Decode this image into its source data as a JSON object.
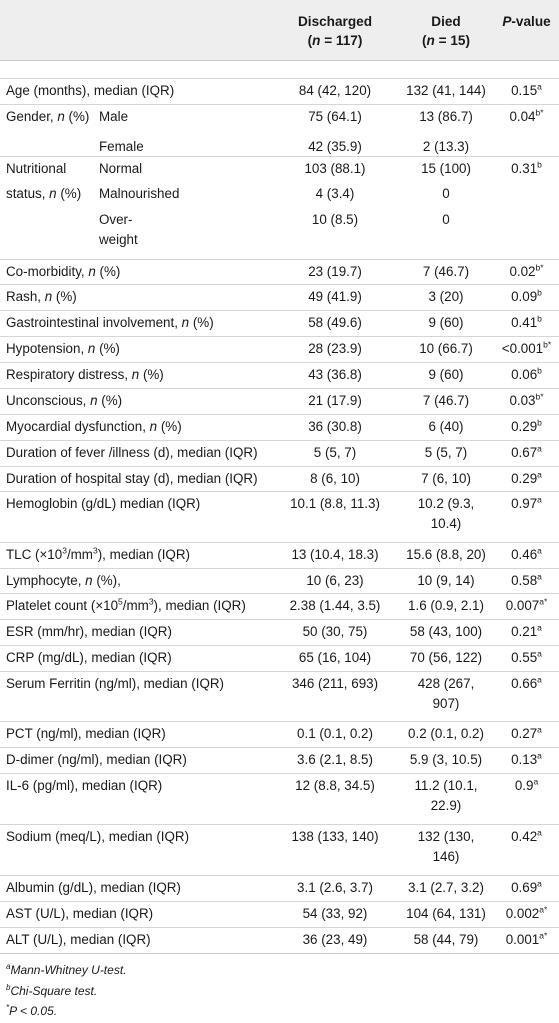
{
  "header": {
    "col_discharged": "Discharged",
    "col_discharged_n": "(n = 117)",
    "col_died": "Died",
    "col_died_n": "(n = 15)",
    "col_pvalue": "P-value"
  },
  "rows": [
    {
      "label": "Age (months), median (IQR)",
      "d": "84 (42, 120)",
      "x": "132 (41, 144)",
      "p": "0.15",
      "sup": "a"
    },
    {
      "label": "Gender, n (%)",
      "sub": "Male",
      "d": "75 (64.1)",
      "x": "13 (86.7)",
      "p": "0.04",
      "sup": "b*"
    },
    {
      "label": "",
      "sub": "Female",
      "d": "42 (35.9)",
      "x": "2 (13.3)",
      "p": "",
      "sup": ""
    },
    {
      "label": "Nutritional",
      "sub": "Normal",
      "d": "103 (88.1)",
      "x": "15 (100)",
      "p": "0.31",
      "sup": "b"
    },
    {
      "label": "status, n (%)",
      "sub": "Malnourished",
      "d": "4 (3.4)",
      "x": "0",
      "p": "",
      "sup": ""
    },
    {
      "label": "",
      "sub": "Over-\nweight",
      "d": "10 (8.5)",
      "x": "0",
      "p": "",
      "sup": ""
    },
    {
      "label": "Co-morbidity, n (%)",
      "d": "23 (19.7)",
      "x": "7 (46.7)",
      "p": "0.02",
      "sup": "b*"
    },
    {
      "label": "Rash, n (%)",
      "d": "49 (41.9)",
      "x": "3 (20)",
      "p": "0.09",
      "sup": "b"
    },
    {
      "label": "Gastrointestinal involvement, n (%)",
      "d": "58 (49.6)",
      "x": "9 (60)",
      "p": "0.41",
      "sup": "b"
    },
    {
      "label": "Hypotension, n (%)",
      "d": "28 (23.9)",
      "x": "10 (66.7)",
      "p": "<0.001",
      "sup": "b*"
    },
    {
      "label": "Respiratory distress, n (%)",
      "d": "43 (36.8)",
      "x": "9 (60)",
      "p": "0.06",
      "sup": "b"
    },
    {
      "label": "Unconscious, n (%)",
      "d": "21 (17.9)",
      "x": "7 (46.7)",
      "p": "0.03",
      "sup": "b*"
    },
    {
      "label": "Myocardial dysfunction, n (%)",
      "d": "36 (30.8)",
      "x": "6 (40)",
      "p": "0.29",
      "sup": "b"
    },
    {
      "label": "Duration of fever /illness (d), median (IQR)",
      "d": "5 (5, 7)",
      "x": "5 (5, 7)",
      "p": "0.67",
      "sup": "a"
    },
    {
      "label": "Duration of hospital stay (d), median (IQR)",
      "d": "8 (6, 10)",
      "x": "7 (6, 10)",
      "p": "0.29",
      "sup": "a"
    },
    {
      "label": "Hemoglobin (g/dL) median (IQR)",
      "d": "10.1 (8.8, 11.3)",
      "x": "10.2 (9.3,\n10.4)",
      "p": "0.97",
      "sup": "a"
    },
    {
      "label": "TLC (×10³/mm³), median (IQR)",
      "d": "13 (10.4, 18.3)",
      "x": "15.6 (8.8, 20)",
      "p": "0.46",
      "sup": "a"
    },
    {
      "label": "Lymphocyte, n (%),",
      "d": "10 (6, 23)",
      "x": "10 (9, 14)",
      "p": "0.58",
      "sup": "a"
    },
    {
      "label": "Platelet count (×10⁵/mm³), median (IQR)",
      "d": "2.38 (1.44, 3.5)",
      "x": "1.6 (0.9, 2.1)",
      "p": "0.007",
      "sup": "a*"
    },
    {
      "label": "ESR (mm/hr), median (IQR)",
      "d": "50 (30, 75)",
      "x": "58 (43, 100)",
      "p": "0.21",
      "sup": "a"
    },
    {
      "label": "CRP (mg/dL), median (IQR)",
      "d": "65 (16, 104)",
      "x": "70 (56, 122)",
      "p": "0.55",
      "sup": "a"
    },
    {
      "label": "Serum Ferritin (ng/ml), median (IQR)",
      "d": "346 (211, 693)",
      "x": "428 (267,\n907)",
      "p": "0.66",
      "sup": "a"
    },
    {
      "label": "PCT (ng/ml), median (IQR)",
      "d": "0.1 (0.1, 0.2)",
      "x": "0.2 (0.1, 0.2)",
      "p": "0.27",
      "sup": "a"
    },
    {
      "label": "D-dimer (ng/ml), median (IQR)",
      "d": "3.6 (2.1, 8.5)",
      "x": "5.9 (3, 10.5)",
      "p": "0.13",
      "sup": "a"
    },
    {
      "label": "IL-6 (pg/ml), median (IQR)",
      "d": "12 (8.8, 34.5)",
      "x": "11.2 (10.1,\n22.9)",
      "p": "0.9",
      "sup": "a"
    },
    {
      "label": "Sodium (meq/L), median (IQR)",
      "d": "138 (133, 140)",
      "x": "132 (130,\n146)",
      "p": "0.42",
      "sup": "a"
    },
    {
      "label": "Albumin (g/dL), median (IQR)",
      "d": "3.1 (2.6, 3.7)",
      "x": "3.1 (2.7, 3.2)",
      "p": "0.69",
      "sup": "a"
    },
    {
      "label": "AST (U/L), median (IQR)",
      "d": "54 (33, 92)",
      "x": "104 (64, 131)",
      "p": "0.002",
      "sup": "a*"
    },
    {
      "label": "ALT (U/L), median (IQR)",
      "d": "36 (23, 49)",
      "x": "58 (44, 79)",
      "p": "0.001",
      "sup": "a*"
    }
  ],
  "footnotes": [
    {
      "sup": "a",
      "text": "Mann-Whitney U-test."
    },
    {
      "sup": "b",
      "text": "Chi-Square test."
    },
    {
      "sup": "*",
      "text": "P < 0.05."
    }
  ]
}
